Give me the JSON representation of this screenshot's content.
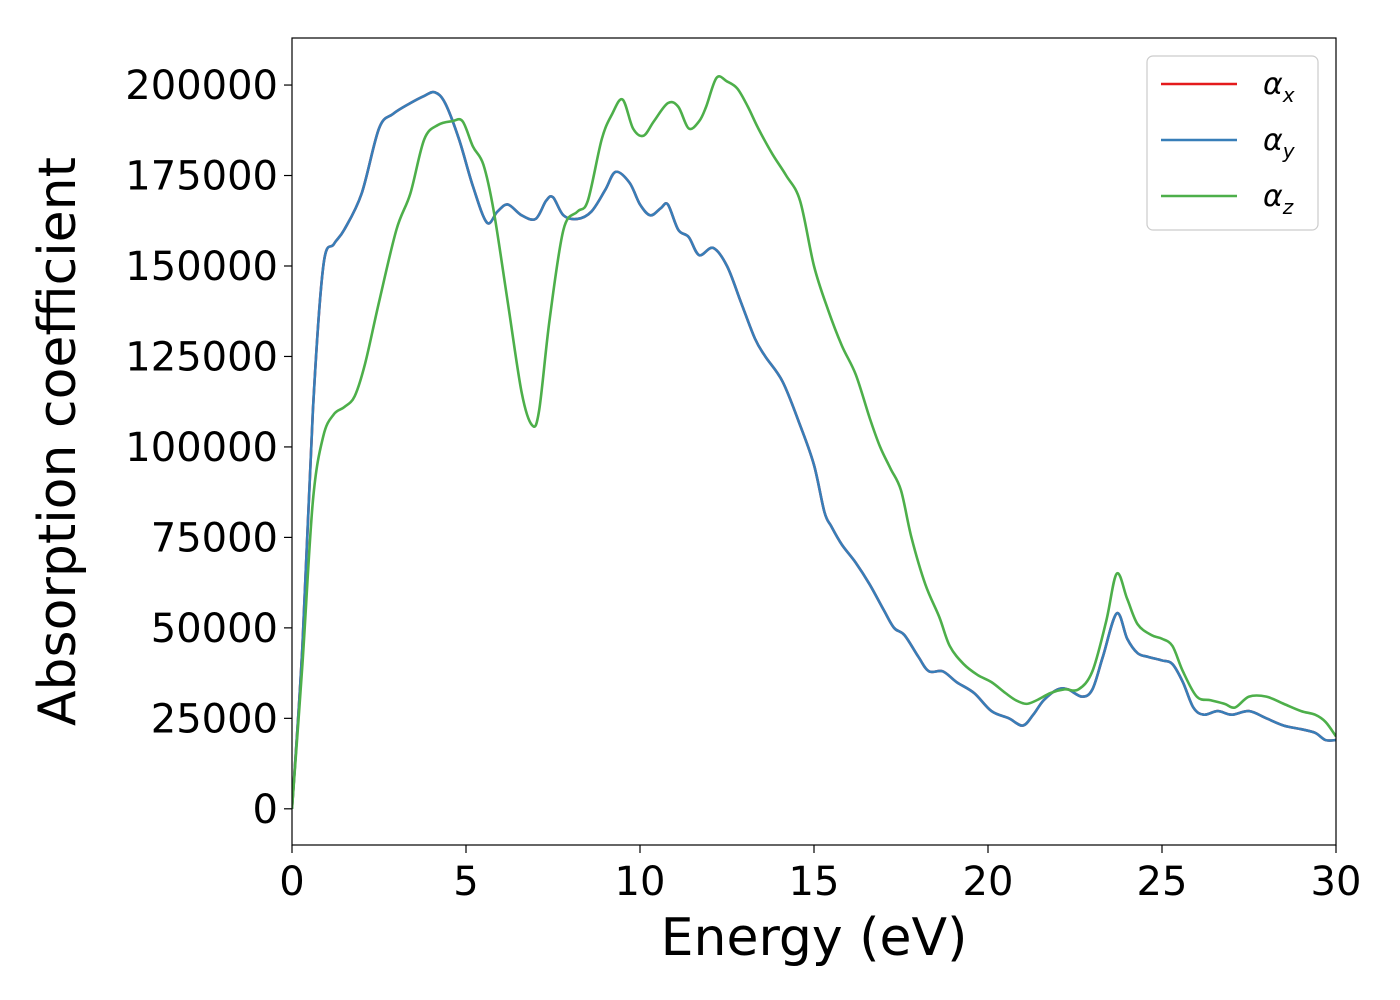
{
  "chart_data": {
    "type": "line",
    "title": "",
    "xlabel": "Energy (eV)",
    "ylabel": "Absorption coefficient",
    "xlim": [
      0,
      30
    ],
    "ylim": [
      -10000,
      213000
    ],
    "xticks": [
      0,
      5,
      10,
      15,
      20,
      25,
      30
    ],
    "xtick_labels": [
      "0",
      "5",
      "10",
      "15",
      "20",
      "25",
      "30"
    ],
    "yticks": [
      0,
      25000,
      50000,
      75000,
      100000,
      125000,
      150000,
      175000,
      200000
    ],
    "ytick_labels": [
      "0",
      "25000",
      "50000",
      "75000",
      "100000",
      "125000",
      "150000",
      "175000",
      "200000"
    ],
    "grid": false,
    "legend_position": "top-right",
    "series": [
      {
        "name": "αx",
        "legend_base": "α",
        "legend_sub": "x",
        "color": "#e41a1c",
        "x": [
          0,
          0.3,
          0.6,
          0.9,
          1.2,
          1.5,
          2.0,
          2.5,
          2.9,
          3.4,
          3.8,
          4.1,
          4.4,
          4.8,
          5.2,
          5.6,
          5.9,
          6.2,
          6.6,
          7.0,
          7.3,
          7.5,
          7.8,
          8.2,
          8.6,
          9.0,
          9.3,
          9.7,
          10.0,
          10.3,
          10.6,
          10.8,
          11.1,
          11.4,
          11.7,
          12.1,
          12.5,
          12.9,
          13.3,
          13.6,
          14.1,
          14.6,
          15.0,
          15.3,
          15.5,
          15.8,
          16.2,
          16.6,
          17.0,
          17.3,
          17.6,
          18.0,
          18.3,
          18.7,
          19.1,
          19.6,
          20.1,
          20.6,
          21.0,
          21.3,
          21.6,
          22.0,
          22.3,
          22.7,
          23.0,
          23.3,
          23.7,
          24.0,
          24.3,
          24.6,
          25.0,
          25.3,
          25.6,
          25.9,
          26.2,
          26.6,
          27.0,
          27.5,
          28.0,
          28.5,
          29.0,
          29.4,
          29.7,
          30.0
        ],
        "y": [
          0,
          45000,
          110000,
          150000,
          156000,
          160000,
          170000,
          188000,
          192000,
          195000,
          197000,
          198000,
          195000,
          185000,
          172000,
          162000,
          165000,
          167000,
          164000,
          163000,
          168000,
          169000,
          164000,
          163000,
          165000,
          171000,
          176000,
          173000,
          167000,
          164000,
          166000,
          167000,
          160000,
          158000,
          153000,
          155000,
          150000,
          140000,
          130000,
          125000,
          118000,
          106000,
          95000,
          82000,
          78000,
          73000,
          68000,
          62000,
          55000,
          50000,
          48000,
          42000,
          38000,
          38000,
          35000,
          32000,
          27000,
          25000,
          23000,
          26000,
          30000,
          33000,
          33000,
          31000,
          33000,
          42000,
          54000,
          47000,
          43000,
          42000,
          41000,
          40000,
          35000,
          28000,
          26000,
          27000,
          26000,
          27000,
          25000,
          23000,
          22000,
          21000,
          19000,
          19000
        ]
      },
      {
        "name": "αy",
        "legend_base": "α",
        "legend_sub": "y",
        "color": "#377eb8",
        "x": [
          0,
          0.3,
          0.6,
          0.9,
          1.2,
          1.5,
          2.0,
          2.5,
          2.9,
          3.4,
          3.8,
          4.1,
          4.4,
          4.8,
          5.2,
          5.6,
          5.9,
          6.2,
          6.6,
          7.0,
          7.3,
          7.5,
          7.8,
          8.2,
          8.6,
          9.0,
          9.3,
          9.7,
          10.0,
          10.3,
          10.6,
          10.8,
          11.1,
          11.4,
          11.7,
          12.1,
          12.5,
          12.9,
          13.3,
          13.6,
          14.1,
          14.6,
          15.0,
          15.3,
          15.5,
          15.8,
          16.2,
          16.6,
          17.0,
          17.3,
          17.6,
          18.0,
          18.3,
          18.7,
          19.1,
          19.6,
          20.1,
          20.6,
          21.0,
          21.3,
          21.6,
          22.0,
          22.3,
          22.7,
          23.0,
          23.3,
          23.7,
          24.0,
          24.3,
          24.6,
          25.0,
          25.3,
          25.6,
          25.9,
          26.2,
          26.6,
          27.0,
          27.5,
          28.0,
          28.5,
          29.0,
          29.4,
          29.7,
          30.0
        ],
        "y": [
          0,
          45000,
          110000,
          150000,
          156000,
          160000,
          170000,
          188000,
          192000,
          195000,
          197000,
          198000,
          195000,
          185000,
          172000,
          162000,
          165000,
          167000,
          164000,
          163000,
          168000,
          169000,
          164000,
          163000,
          165000,
          171000,
          176000,
          173000,
          167000,
          164000,
          166000,
          167000,
          160000,
          158000,
          153000,
          155000,
          150000,
          140000,
          130000,
          125000,
          118000,
          106000,
          95000,
          82000,
          78000,
          73000,
          68000,
          62000,
          55000,
          50000,
          48000,
          42000,
          38000,
          38000,
          35000,
          32000,
          27000,
          25000,
          23000,
          26000,
          30000,
          33000,
          33000,
          31000,
          33000,
          42000,
          54000,
          47000,
          43000,
          42000,
          41000,
          40000,
          35000,
          28000,
          26000,
          27000,
          26000,
          27000,
          25000,
          23000,
          22000,
          21000,
          19000,
          19000
        ]
      },
      {
        "name": "αz",
        "legend_base": "α",
        "legend_sub": "z",
        "color": "#4daf4a",
        "x": [
          0,
          0.3,
          0.6,
          0.9,
          1.2,
          1.5,
          1.8,
          2.1,
          2.5,
          3.0,
          3.4,
          3.8,
          4.2,
          4.6,
          4.9,
          5.2,
          5.5,
          5.8,
          6.2,
          6.6,
          6.9,
          7.1,
          7.4,
          7.8,
          8.2,
          8.5,
          8.9,
          9.2,
          9.5,
          9.8,
          10.1,
          10.4,
          10.8,
          11.1,
          11.4,
          11.7,
          11.9,
          12.2,
          12.5,
          12.8,
          13.1,
          13.4,
          13.8,
          14.2,
          14.6,
          15.0,
          15.4,
          15.8,
          16.2,
          16.6,
          16.9,
          17.2,
          17.5,
          17.8,
          18.2,
          18.6,
          18.9,
          19.3,
          19.7,
          20.1,
          20.5,
          20.8,
          21.1,
          21.4,
          21.8,
          22.2,
          22.6,
          23.0,
          23.4,
          23.7,
          24.0,
          24.3,
          24.7,
          25.0,
          25.3,
          25.6,
          26.0,
          26.4,
          26.8,
          27.1,
          27.5,
          28.0,
          28.5,
          29.0,
          29.4,
          29.7,
          30.0
        ],
        "y": [
          0,
          40000,
          85000,
          103000,
          109000,
          111000,
          114000,
          123000,
          140000,
          160000,
          170000,
          185000,
          189000,
          190000,
          190000,
          183000,
          178000,
          165000,
          140000,
          115000,
          106000,
          110000,
          135000,
          160000,
          165000,
          168000,
          185000,
          192000,
          196000,
          188000,
          186000,
          190000,
          195000,
          194000,
          188000,
          190000,
          194000,
          202000,
          201000,
          199000,
          194000,
          188000,
          181000,
          175000,
          168000,
          150000,
          138000,
          128000,
          120000,
          108000,
          100000,
          94000,
          88000,
          75000,
          62000,
          53000,
          45000,
          40000,
          37000,
          35000,
          32000,
          30000,
          29000,
          30000,
          32000,
          33000,
          33000,
          38000,
          52000,
          65000,
          58000,
          51000,
          48000,
          47000,
          45000,
          38000,
          31000,
          30000,
          29000,
          28000,
          31000,
          31000,
          29000,
          27000,
          26000,
          24000,
          20000
        ]
      }
    ]
  }
}
